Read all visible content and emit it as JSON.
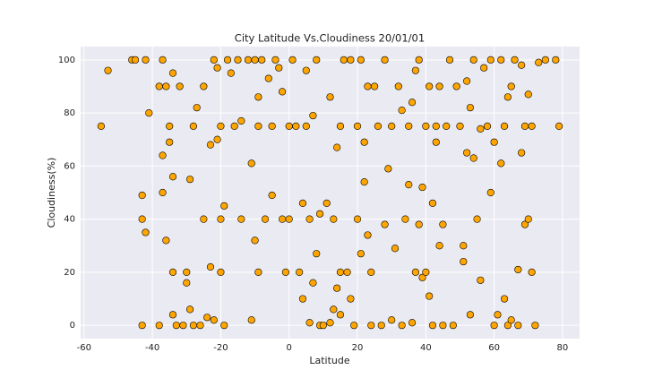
{
  "chart_data": {
    "type": "scatter",
    "title": "City Latitude Vs.Cloudiness 20/01/01",
    "x_label": "Latitude",
    "y_label": "Cloudiness(%)",
    "color": "#ffa500",
    "edgecolor": "#000000",
    "grid": true,
    "xlim": [
      -61,
      85
    ],
    "ylim": [
      -5,
      105
    ],
    "xticks": [
      -60,
      -40,
      -20,
      0,
      20,
      40,
      60,
      80
    ],
    "yticks": [
      0,
      20,
      40,
      60,
      80,
      100
    ],
    "x": [
      -55,
      -53,
      -46,
      -45,
      -43,
      -43,
      -43,
      -42,
      -42,
      -41,
      -38,
      -38,
      -37,
      -37,
      -37,
      -36,
      -36,
      -35,
      -35,
      -34,
      -34,
      -34,
      -34,
      -33,
      -32,
      -31,
      -30,
      -30,
      -29,
      -29,
      -28,
      -28,
      -27,
      -26,
      -25,
      -25,
      -24,
      -23,
      -23,
      -22,
      -22,
      -21,
      -21,
      -20,
      -20,
      -20,
      -19,
      -19,
      -18,
      -17,
      -16,
      -15,
      -14,
      -14,
      -12,
      -11,
      -11,
      -10,
      -10,
      -9,
      -9,
      -9,
      -8,
      -7,
      -6,
      -5,
      -5,
      -4,
      -3,
      -2,
      -2,
      -1,
      0,
      0,
      1,
      2,
      3,
      4,
      4,
      5,
      5,
      6,
      6,
      7,
      7,
      8,
      8,
      9,
      9,
      10,
      11,
      12,
      12,
      13,
      13,
      14,
      14,
      15,
      15,
      15,
      16,
      17,
      18,
      18,
      19,
      20,
      20,
      21,
      21,
      22,
      22,
      23,
      23,
      24,
      24,
      25,
      26,
      27,
      28,
      28,
      29,
      30,
      30,
      31,
      32,
      33,
      33,
      34,
      35,
      35,
      36,
      36,
      37,
      37,
      38,
      38,
      39,
      39,
      40,
      40,
      41,
      41,
      42,
      42,
      43,
      43,
      44,
      44,
      45,
      45,
      46,
      47,
      48,
      49,
      50,
      51,
      51,
      52,
      52,
      53,
      53,
      54,
      54,
      55,
      56,
      56,
      57,
      58,
      59,
      59,
      60,
      60,
      61,
      62,
      62,
      63,
      63,
      64,
      64,
      65,
      65,
      66,
      67,
      67,
      68,
      68,
      69,
      69,
      70,
      70,
      71,
      71,
      72,
      73,
      75,
      78,
      79
    ],
    "values": [
      75,
      96,
      100,
      100,
      0,
      40,
      49,
      35,
      100,
      80,
      0,
      90,
      50,
      64,
      100,
      32,
      90,
      75,
      69,
      56,
      20,
      4,
      95,
      0,
      90,
      0,
      20,
      16,
      55,
      6,
      75,
      0,
      82,
      0,
      40,
      90,
      3,
      22,
      68,
      100,
      2,
      70,
      97,
      20,
      40,
      75,
      0,
      45,
      100,
      95,
      75,
      100,
      40,
      77,
      100,
      61,
      2,
      32,
      100,
      75,
      20,
      86,
      100,
      40,
      93,
      75,
      49,
      100,
      97,
      40,
      88,
      20,
      75,
      40,
      100,
      75,
      20,
      46,
      10,
      96,
      75,
      40,
      1,
      79,
      16,
      27,
      100,
      42,
      0,
      0,
      46,
      86,
      1,
      6,
      40,
      14,
      67,
      4,
      75,
      20,
      100,
      20,
      10,
      100,
      0,
      75,
      40,
      27,
      100,
      54,
      69,
      34,
      90,
      0,
      20,
      90,
      75,
      0,
      100,
      38,
      59,
      75,
      2,
      29,
      90,
      81,
      0,
      40,
      75,
      53,
      84,
      1,
      96,
      20,
      38,
      100,
      52,
      18,
      20,
      75,
      11,
      90,
      46,
      0,
      69,
      75,
      30,
      90,
      38,
      0,
      75,
      100,
      0,
      90,
      75,
      24,
      30,
      92,
      65,
      82,
      4,
      63,
      100,
      40,
      17,
      74,
      97,
      75,
      50,
      100,
      69,
      0,
      4,
      61,
      100,
      10,
      75,
      86,
      0,
      90,
      2,
      100,
      21,
      0,
      65,
      98,
      38,
      75,
      40,
      87,
      20,
      75,
      0,
      99,
      100,
      100,
      75
    ]
  }
}
